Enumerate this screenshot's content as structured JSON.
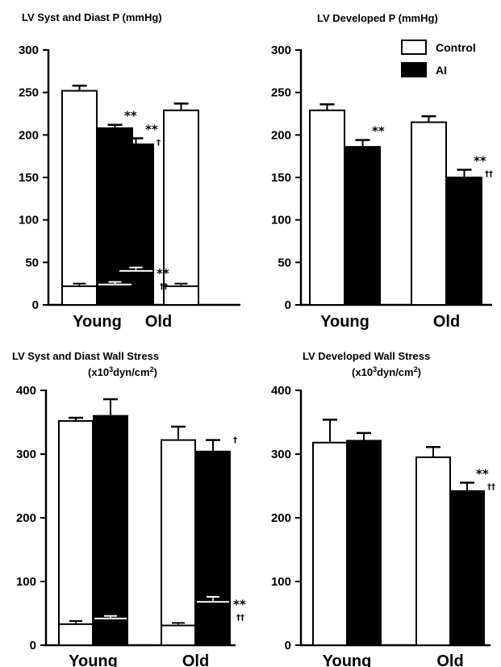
{
  "legend": {
    "control": "Control",
    "ai": "AI"
  },
  "chart_data": [
    {
      "type": "bar",
      "title": "LV Syst and Diast P (mmHg)",
      "subtitle": "",
      "categories": [
        "Young",
        "Old"
      ],
      "ylim": [
        0,
        300
      ],
      "yticks": [
        0,
        50,
        100,
        150,
        200,
        250,
        300
      ],
      "series": [
        {
          "name": "Control",
          "values": [
            252,
            229
          ],
          "errors": [
            6,
            8
          ]
        },
        {
          "name": "AI",
          "values": [
            208,
            189
          ],
          "errors": [
            4,
            7
          ]
        }
      ],
      "diastolic": [
        {
          "name": "Control",
          "values": [
            22,
            22
          ],
          "errors": [
            3,
            3
          ]
        },
        {
          "name": "AI",
          "values": [
            24,
            40
          ],
          "errors": [
            3,
            4
          ]
        }
      ],
      "annotations": [
        {
          "series": 1,
          "category": 0,
          "level": "top",
          "text": "**"
        },
        {
          "series": 1,
          "category": 1,
          "level": "top",
          "text": "**",
          "sub": "†"
        },
        {
          "series": 1,
          "category": 1,
          "level": "bottom",
          "text": "**",
          "sub": "††"
        }
      ]
    },
    {
      "type": "bar",
      "title": "LV Developed P (mmHg)",
      "subtitle": "",
      "categories": [
        "Young",
        "Old"
      ],
      "ylim": [
        0,
        300
      ],
      "yticks": [
        0,
        50,
        100,
        150,
        200,
        250,
        300
      ],
      "series": [
        {
          "name": "Control",
          "values": [
            229,
            215
          ],
          "errors": [
            7,
            7
          ]
        },
        {
          "name": "AI",
          "values": [
            186,
            150
          ],
          "errors": [
            8,
            9
          ]
        }
      ],
      "annotations": [
        {
          "series": 1,
          "category": 0,
          "level": "top",
          "text": "**"
        },
        {
          "series": 1,
          "category": 1,
          "level": "top",
          "text": "**",
          "sub": "††"
        }
      ]
    },
    {
      "type": "bar",
      "title": "LV Syst and Diast Wall Stress",
      "subtitle": "(x10³dyn/cm²)",
      "categories": [
        "Young",
        "Old"
      ],
      "ylim": [
        0,
        400
      ],
      "yticks": [
        0,
        100,
        200,
        300,
        400
      ],
      "series": [
        {
          "name": "Control",
          "values": [
            352,
            322
          ],
          "errors": [
            5,
            21
          ]
        },
        {
          "name": "AI",
          "values": [
            360,
            304
          ],
          "errors": [
            26,
            18
          ]
        }
      ],
      "diastolic": [
        {
          "name": "Control",
          "values": [
            33,
            31
          ],
          "errors": [
            5,
            4
          ]
        },
        {
          "name": "AI",
          "values": [
            42,
            68
          ],
          "errors": [
            4,
            8
          ]
        }
      ],
      "annotations": [
        {
          "series": 1,
          "category": 1,
          "level": "top",
          "text": "",
          "sub": "†"
        },
        {
          "series": 1,
          "category": 1,
          "level": "bottom",
          "text": "**",
          "sub": "††"
        }
      ]
    },
    {
      "type": "bar",
      "title": "LV Developed Wall Stress",
      "subtitle": "(x10³dyn/cm²)",
      "categories": [
        "Young",
        "Old"
      ],
      "ylim": [
        0,
        400
      ],
      "yticks": [
        0,
        100,
        200,
        300,
        400
      ],
      "series": [
        {
          "name": "Control",
          "values": [
            318,
            295
          ],
          "errors": [
            36,
            16
          ]
        },
        {
          "name": "AI",
          "values": [
            321,
            242
          ],
          "errors": [
            12,
            13
          ]
        }
      ],
      "annotations": [
        {
          "series": 1,
          "category": 1,
          "level": "top",
          "text": "**",
          "sub": "††"
        }
      ]
    }
  ]
}
